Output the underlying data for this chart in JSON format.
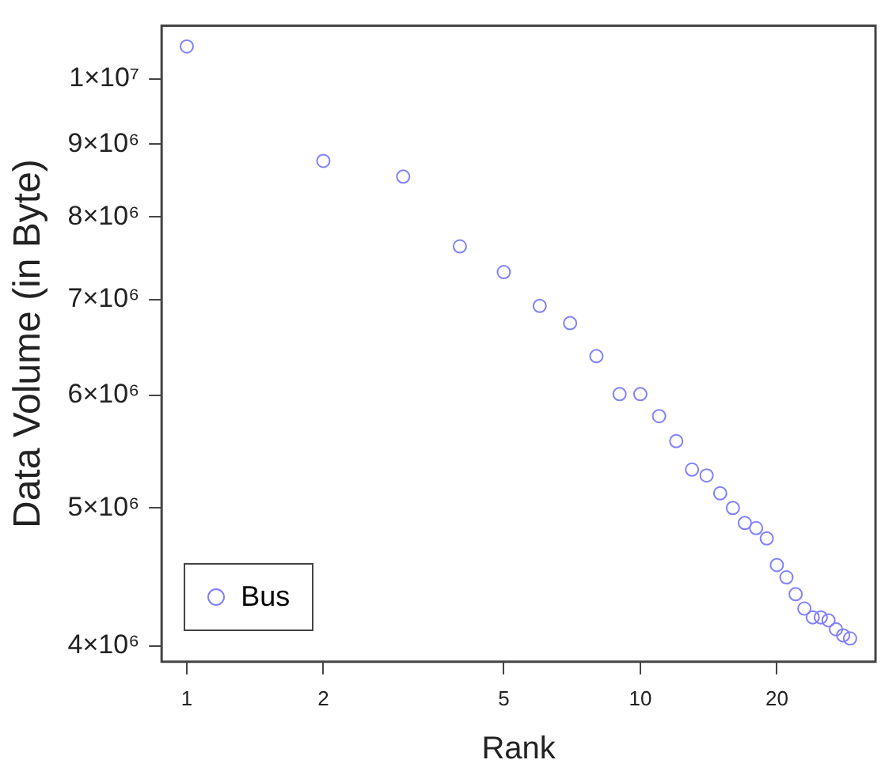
{
  "chart_data": {
    "type": "scatter",
    "xlabel": "Rank",
    "ylabel": "Data Volume (in Byte)",
    "log": "xy",
    "grid": false,
    "legend": "bottom left",
    "marker": "circle",
    "xlim": [
      0.88,
      33
    ],
    "xticks": [
      1,
      2,
      5,
      10,
      20
    ],
    "ylim": [
      3900000,
      10900000
    ],
    "yticks": [
      {
        "value": 4000000,
        "label": "4×10⁶"
      },
      {
        "value": 5000000,
        "label": "5×10⁶"
      },
      {
        "value": 6000000,
        "label": "6×10⁶"
      },
      {
        "value": 7000000,
        "label": "7×10⁶"
      },
      {
        "value": 8000000,
        "label": "8×10⁶"
      },
      {
        "value": 9000000,
        "label": "9×10⁶"
      },
      {
        "value": 10000000,
        "label": "1×10⁷"
      }
    ],
    "series": [
      {
        "name": "Bus",
        "color": "#8080ff",
        "x": [
          1,
          2,
          3,
          4,
          5,
          6,
          7,
          8,
          9,
          10,
          11,
          12,
          13,
          14,
          15,
          16,
          17,
          18,
          19,
          20,
          21,
          22,
          23,
          24,
          25,
          26,
          27,
          28,
          29
        ],
        "values": [
          10540000,
          8760000,
          8540000,
          7630000,
          7320000,
          6930000,
          6740000,
          6390000,
          6010000,
          6010000,
          5800000,
          5570000,
          5320000,
          5270000,
          5120000,
          5000000,
          4880000,
          4840000,
          4760000,
          4560000,
          4470000,
          4350000,
          4250000,
          4190000,
          4190000,
          4170000,
          4110000,
          4070000,
          4050000
        ]
      }
    ]
  }
}
